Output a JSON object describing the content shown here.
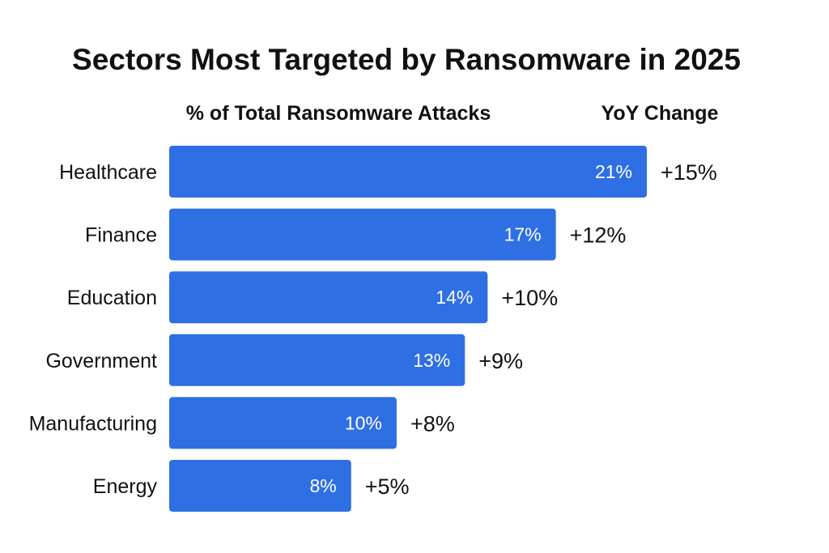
{
  "chart_data": {
    "type": "bar",
    "orientation": "horizontal",
    "title": "Sectors Most Targeted by Ransomware in 2025",
    "value_header": "% of Total Ransomware Attacks",
    "change_header": "YoY Change",
    "categories": [
      "Healthcare",
      "Finance",
      "Education",
      "Government",
      "Manufacturing",
      "Energy"
    ],
    "values": [
      21,
      17,
      14,
      13,
      10,
      8
    ],
    "value_labels": [
      "21%",
      "17%",
      "14%",
      "13%",
      "10%",
      "8%"
    ],
    "yoy_change": [
      "+15%",
      "+12%",
      "+10%",
      "+9%",
      "+8%",
      "+5%"
    ],
    "bar_color": "#2f6fe4",
    "grid": false,
    "legend": "none"
  }
}
